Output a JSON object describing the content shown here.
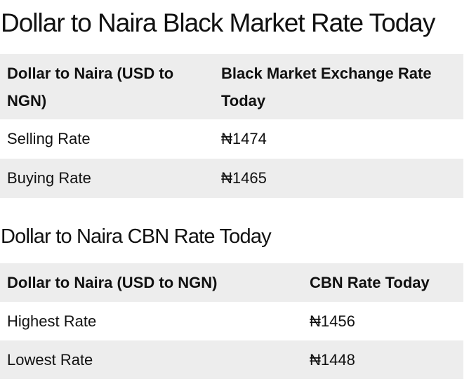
{
  "black_market": {
    "heading": "Dollar to Naira Black Market Rate Today",
    "columns": [
      "Dollar to Naira (USD to NGN)",
      "Black Market Exchange Rate Today"
    ],
    "rows": [
      {
        "label": "Selling Rate",
        "value": "₦1474"
      },
      {
        "label": "Buying Rate",
        "value": "₦1465"
      }
    ]
  },
  "cbn": {
    "heading": "Dollar to Naira CBN Rate Today",
    "columns": [
      "Dollar to Naira (USD to NGN)",
      "CBN Rate Today"
    ],
    "rows": [
      {
        "label": "Highest Rate",
        "value": "₦1456"
      },
      {
        "label": "Lowest Rate",
        "value": "₦1448"
      }
    ]
  }
}
